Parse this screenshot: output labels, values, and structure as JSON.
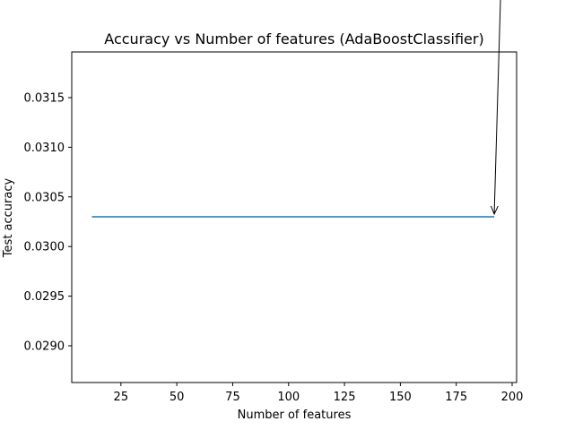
{
  "chart_data": {
    "type": "line",
    "title": "Accuracy vs Number of features (AdaBoostClassifier)",
    "xlabel": "Number of features",
    "ylabel": "Test accuracy",
    "xlim": [
      3,
      202
    ],
    "ylim": [
      0.02863,
      0.03196
    ],
    "xticks": [
      25,
      50,
      75,
      100,
      125,
      150,
      175,
      200
    ],
    "yticks": [
      0.029,
      0.0295,
      0.03,
      0.0305,
      0.031,
      0.0315
    ],
    "ytick_labels": [
      "0.0290",
      "0.0295",
      "0.0300",
      "0.0305",
      "0.0310",
      "0.0315"
    ],
    "grid": false,
    "series": [
      {
        "color": "#1f77b4",
        "x": [
          12,
          192
        ],
        "y": [
          0.0303,
          0.0303
        ]
      }
    ],
    "annotation": {
      "text": "",
      "xy": [
        192,
        0.0303
      ],
      "color": "#000000"
    }
  }
}
